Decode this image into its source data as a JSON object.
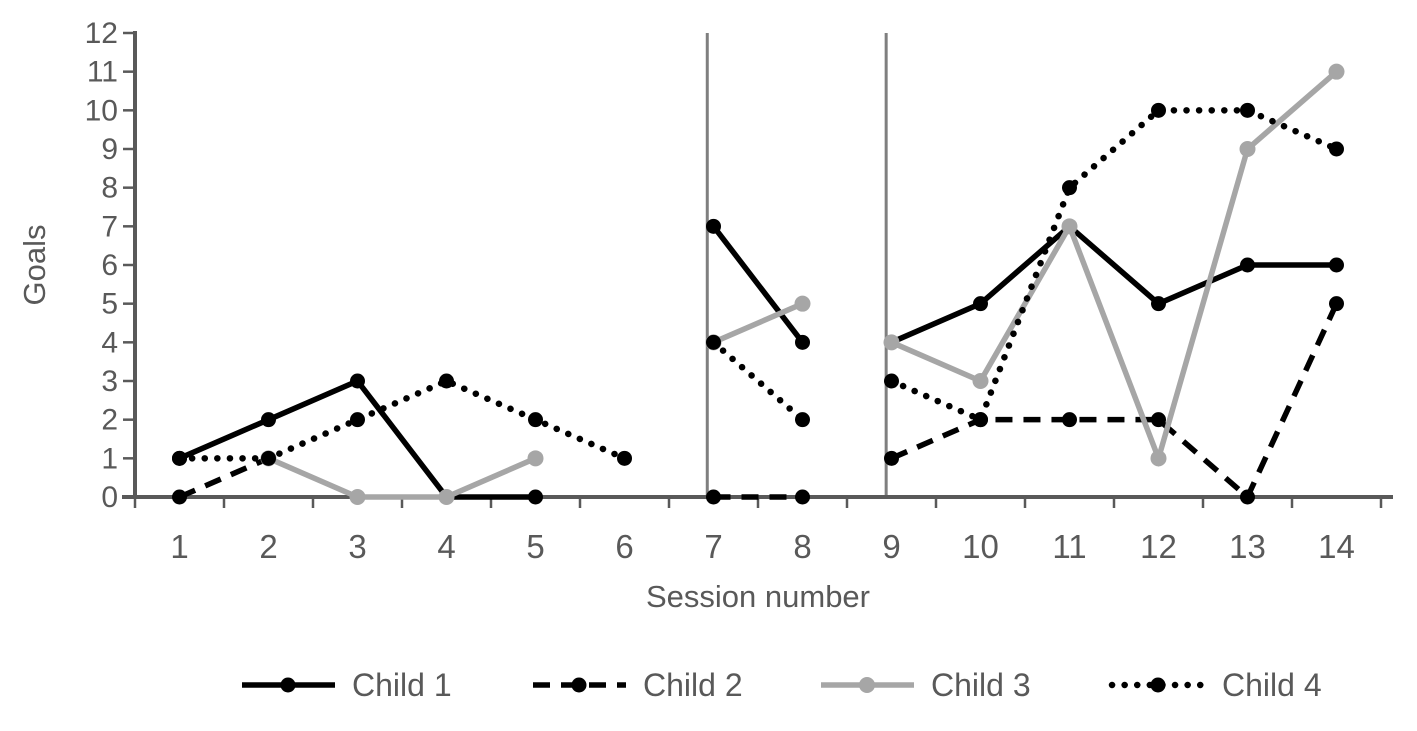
{
  "figure": {
    "kind": "line-chart-figure",
    "background": "#ffffff"
  },
  "colors": {
    "series_black": "#000000",
    "series_gray": "#a6a6a6",
    "axis": "#595959",
    "text": "#595959",
    "divider": "#7f7f7f"
  },
  "chart_data": {
    "type": "line",
    "title": "",
    "xlabel": "Session number",
    "ylabel": "Goals",
    "x_categories": [
      1,
      2,
      3,
      4,
      5,
      6,
      7,
      8,
      9,
      10,
      11,
      12,
      13,
      14
    ],
    "yticks": [
      0,
      1,
      2,
      3,
      4,
      5,
      6,
      7,
      8,
      9,
      10,
      11,
      12
    ],
    "ylim": [
      0,
      12
    ],
    "grid": false,
    "legend_position": "bottom",
    "phase_dividers_x": [
      6.93,
      8.94
    ],
    "series": [
      {
        "name": "Child 1",
        "color": "#000000",
        "style": "solid",
        "segments": [
          [
            [
              1,
              1
            ],
            [
              2,
              2
            ],
            [
              3,
              3
            ],
            [
              4,
              0
            ],
            [
              5,
              0
            ]
          ],
          [
            [
              7,
              7
            ],
            [
              8,
              4
            ]
          ],
          [
            [
              9,
              4
            ],
            [
              10,
              5
            ],
            [
              11,
              7
            ],
            [
              12,
              5
            ],
            [
              13,
              6
            ],
            [
              14,
              6
            ]
          ]
        ]
      },
      {
        "name": "Child 2",
        "color": "#000000",
        "style": "dashed",
        "segments": [
          [
            [
              1,
              0
            ],
            [
              2,
              1
            ]
          ],
          [
            [
              7,
              0
            ],
            [
              8,
              0
            ]
          ],
          [
            [
              9,
              1
            ],
            [
              10,
              2
            ],
            [
              11,
              2
            ],
            [
              12,
              2
            ],
            [
              13,
              0
            ],
            [
              14,
              5
            ]
          ]
        ]
      },
      {
        "name": "Child 3",
        "color": "#a6a6a6",
        "style": "solid",
        "segments": [
          [
            [
              2,
              1
            ],
            [
              3,
              0
            ],
            [
              4,
              0
            ],
            [
              5,
              1
            ]
          ],
          [
            [
              7,
              4
            ],
            [
              8,
              5
            ]
          ],
          [
            [
              9,
              4
            ],
            [
              10,
              3
            ],
            [
              11,
              7
            ],
            [
              12,
              1
            ],
            [
              13,
              9
            ],
            [
              14,
              11
            ]
          ]
        ]
      },
      {
        "name": "Child 4",
        "color": "#000000",
        "style": "dotted",
        "segments": [
          [
            [
              1,
              1
            ],
            [
              2,
              1
            ],
            [
              3,
              2
            ],
            [
              4,
              3
            ],
            [
              5,
              2
            ],
            [
              6,
              1
            ]
          ],
          [
            [
              7,
              4
            ],
            [
              8,
              2
            ]
          ],
          [
            [
              9,
              3
            ],
            [
              10,
              2
            ],
            [
              11,
              8
            ],
            [
              12,
              10
            ],
            [
              13,
              10
            ],
            [
              14,
              9
            ]
          ]
        ]
      }
    ]
  }
}
